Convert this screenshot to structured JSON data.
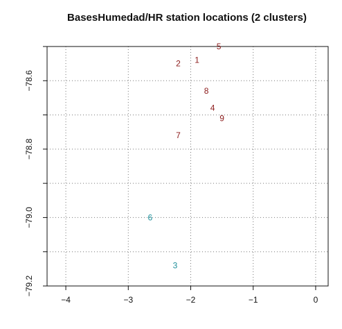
{
  "chart_data": {
    "type": "scatter",
    "title": "BasesHumedad/HR station locations (2 clusters)",
    "xlabel": "",
    "ylabel": "",
    "xlim": [
      -4.3,
      0.2
    ],
    "ylim": [
      -79.2,
      -78.5
    ],
    "grid": true,
    "x_ticks": [
      -4,
      -3,
      -2,
      -1,
      0
    ],
    "y_ticks_labeled": [
      -78.6,
      -78.8,
      -79.0,
      -79.2
    ],
    "y_ticks_minor": [
      -78.5,
      -78.7,
      -78.9,
      -79.1
    ],
    "x_tick_labels": [
      "−4",
      "−3",
      "−2",
      "−1",
      "0"
    ],
    "y_tick_labels": [
      "−78.6",
      "−78.8",
      "−79.0",
      "−79.2"
    ],
    "series": [
      {
        "color": "#8b1a1a",
        "points": [
          {
            "label": "5",
            "x": -1.55,
            "y": -78.5
          },
          {
            "label": "2",
            "x": -2.2,
            "y": -78.55
          },
          {
            "label": "1",
            "x": -1.9,
            "y": -78.54
          },
          {
            "label": "8",
            "x": -1.75,
            "y": -78.63
          },
          {
            "label": "4",
            "x": -1.65,
            "y": -78.68
          },
          {
            "label": "9",
            "x": -1.5,
            "y": -78.71
          },
          {
            "label": "7",
            "x": -2.2,
            "y": -78.76
          }
        ]
      },
      {
        "color": "#1f8f9a",
        "points": [
          {
            "label": "6",
            "x": -2.65,
            "y": -79.0
          },
          {
            "label": "3",
            "x": -2.25,
            "y": -79.14
          }
        ]
      }
    ]
  }
}
